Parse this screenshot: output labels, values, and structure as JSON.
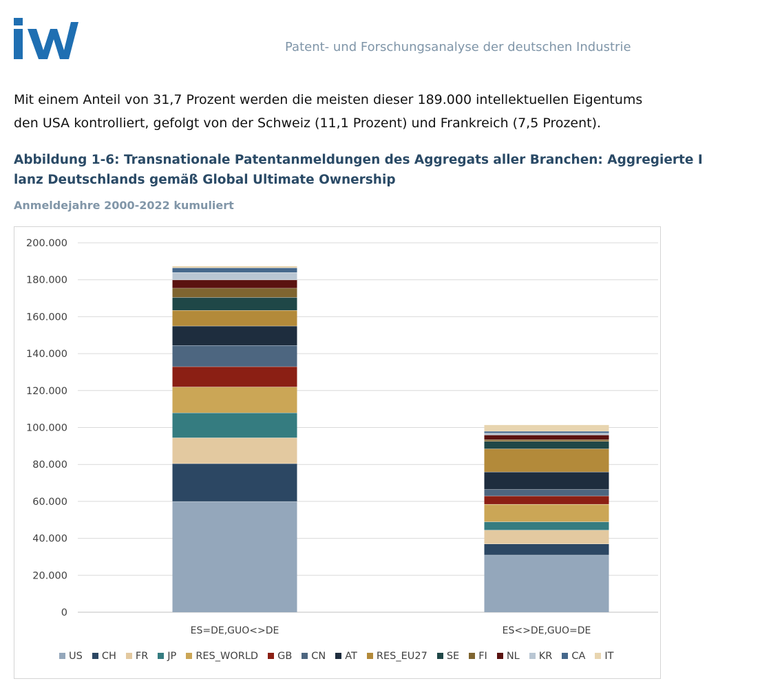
{
  "header": {
    "logo_text": "iW",
    "title": "Patent- und Forschungsanalyse der deutschen Industrie"
  },
  "body_text": {
    "line1": "Mit einem Anteil von 31,7 Prozent werden die meisten dieser 189.000 intellektuellen Eigentums",
    "line2": "den USA kontrolliert, gefolgt von der Schweiz (11,1 Prozent) und Frankreich (7,5 Prozent)."
  },
  "figure": {
    "caption_line1": "Abbildung 1-6: Transnationale Patentanmeldungen des Aggregats aller Branchen: Aggregierte I",
    "caption_line2": "lanz Deutschlands gemäß Global Ultimate Ownership",
    "subtitle": "Anmeldejahre 2000-2022 kumuliert"
  },
  "chart_data": {
    "type": "bar",
    "stacked": true,
    "categories": [
      "ES=DE,GUO<>DE",
      "ES<>DE,GUO=DE"
    ],
    "ylim": [
      0,
      200000
    ],
    "yticks": [
      {
        "value": 0,
        "label": "0"
      },
      {
        "value": 20000,
        "label": "20.000"
      },
      {
        "value": 40000,
        "label": "40.000"
      },
      {
        "value": 60000,
        "label": "60.000"
      },
      {
        "value": 80000,
        "label": "80.000"
      },
      {
        "value": 100000,
        "label": "100.000"
      },
      {
        "value": 120000,
        "label": "120.000"
      },
      {
        "value": 140000,
        "label": "140.000"
      },
      {
        "value": 160000,
        "label": "160.000"
      },
      {
        "value": 180000,
        "label": "180.000"
      },
      {
        "value": 200000,
        "label": "200.000"
      }
    ],
    "grid": true,
    "legend_position": "bottom",
    "series": [
      {
        "name": "US",
        "color": "#94a7bb",
        "values": [
          60000,
          31000
        ]
      },
      {
        "name": "CH",
        "color": "#2c4763",
        "values": [
          20500,
          6000
        ]
      },
      {
        "name": "FR",
        "color": "#e3c9a0",
        "values": [
          14000,
          7500
        ]
      },
      {
        "name": "JP",
        "color": "#357c80",
        "values": [
          13500,
          4500
        ]
      },
      {
        "name": "RES_WORLD",
        "color": "#cba656",
        "values": [
          14000,
          9500
        ]
      },
      {
        "name": "GB",
        "color": "#8b1f14",
        "values": [
          11000,
          4500
        ]
      },
      {
        "name": "CN",
        "color": "#4d6680",
        "values": [
          11500,
          3500
        ]
      },
      {
        "name": "AT",
        "color": "#1e2d3e",
        "values": [
          10500,
          9500
        ]
      },
      {
        "name": "RES_EU27",
        "color": "#b38a3a",
        "values": [
          8500,
          12500
        ]
      },
      {
        "name": "SE",
        "color": "#1f4747",
        "values": [
          7000,
          4000
        ]
      },
      {
        "name": "FI",
        "color": "#7f6530",
        "values": [
          5000,
          1000
        ]
      },
      {
        "name": "NL",
        "color": "#5a1210",
        "values": [
          4500,
          2500
        ]
      },
      {
        "name": "KR",
        "color": "#b9c6d3",
        "values": [
          4000,
          1000
        ]
      },
      {
        "name": "CA",
        "color": "#46688c",
        "values": [
          2500,
          1000
        ]
      },
      {
        "name": "IT",
        "color": "#e8d5b0",
        "values": [
          1000,
          3500
        ]
      }
    ]
  }
}
